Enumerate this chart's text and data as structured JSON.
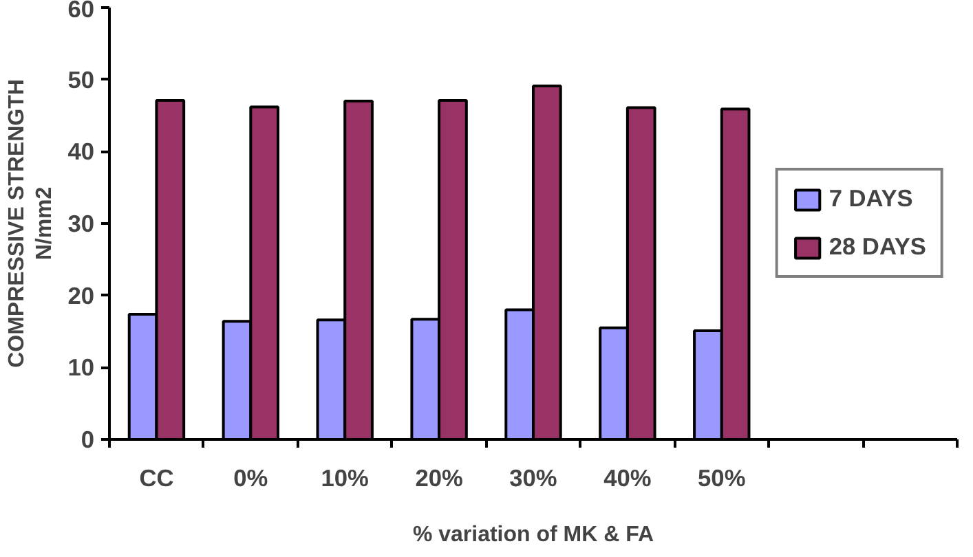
{
  "chart_data": {
    "type": "bar",
    "xlabel": "% variation of MK & FA",
    "ylabel": "COMPRESSIVE STRENGTH\nN/mm2",
    "categories": [
      "CC",
      "0%",
      "10%",
      "20%",
      "30%",
      "40%",
      "50%",
      null,
      null
    ],
    "series": [
      {
        "name": "7 DAYS",
        "color": "#9999ff",
        "values": [
          17.4,
          16.4,
          16.6,
          16.7,
          18.0,
          15.5,
          15.1,
          null,
          null
        ]
      },
      {
        "name": "28 DAYS",
        "color": "#993366",
        "values": [
          47.1,
          46.2,
          47.0,
          47.1,
          49.1,
          46.1,
          45.9,
          null,
          null
        ]
      }
    ],
    "ylim": [
      0,
      60
    ],
    "yticks": [
      0,
      10,
      20,
      30,
      40,
      50,
      60
    ],
    "grid": false,
    "legend": "right"
  }
}
